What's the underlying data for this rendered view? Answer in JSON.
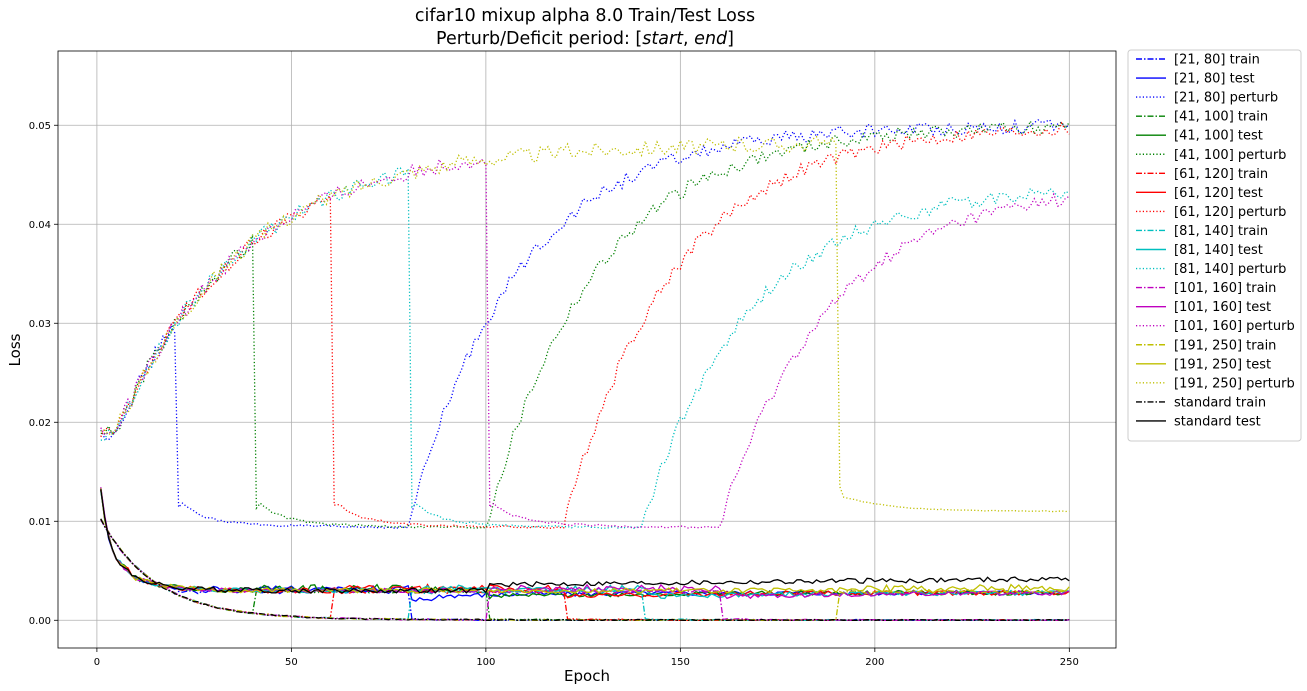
{
  "chart_data": {
    "type": "line",
    "title_line1": "cifar10 mixup alpha 8.0 Train/Test Loss",
    "title_line2_prefix": "Perturb/Deficit period: [",
    "title_line2_start": "start",
    "title_line2_sep": ", ",
    "title_line2_end": "end",
    "title_line2_suffix": "]",
    "xlabel": "Epoch",
    "ylabel": "Loss",
    "xlim": [
      -10,
      262
    ],
    "ylim": [
      -0.0028,
      0.0575
    ],
    "xticks": [
      0,
      50,
      100,
      150,
      200,
      250
    ],
    "yticks": [
      0.0,
      0.01,
      0.02,
      0.03,
      0.04,
      0.05
    ],
    "ytick_labels": [
      "0.00",
      "0.01",
      "0.02",
      "0.03",
      "0.04",
      "0.05"
    ],
    "grid": true,
    "legend_position": "outside-right-top",
    "series": [
      {
        "name": "[21, 80] train",
        "color": "#0000ff",
        "style": "dashdot",
        "period": [
          21,
          80
        ],
        "kind": "train"
      },
      {
        "name": "[21, 80] test",
        "color": "#0000ff",
        "style": "solid",
        "period": [
          21,
          80
        ],
        "kind": "test"
      },
      {
        "name": "[21, 80] perturb",
        "color": "#0000ff",
        "style": "dotted",
        "period": [
          21,
          80
        ],
        "kind": "perturb"
      },
      {
        "name": "[41, 100] train",
        "color": "#008000",
        "style": "dashdot",
        "period": [
          41,
          100
        ],
        "kind": "train"
      },
      {
        "name": "[41, 100] test",
        "color": "#008000",
        "style": "solid",
        "period": [
          41,
          100
        ],
        "kind": "test"
      },
      {
        "name": "[41, 100] perturb",
        "color": "#008000",
        "style": "dotted",
        "period": [
          41,
          100
        ],
        "kind": "perturb"
      },
      {
        "name": "[61, 120] train",
        "color": "#ff0000",
        "style": "dashdot",
        "period": [
          61,
          120
        ],
        "kind": "train"
      },
      {
        "name": "[61, 120] test",
        "color": "#ff0000",
        "style": "solid",
        "period": [
          61,
          120
        ],
        "kind": "test"
      },
      {
        "name": "[61, 120] perturb",
        "color": "#ff0000",
        "style": "dotted",
        "period": [
          61,
          120
        ],
        "kind": "perturb"
      },
      {
        "name": "[81, 140] train",
        "color": "#00bfbf",
        "style": "dashdot",
        "period": [
          81,
          140
        ],
        "kind": "train"
      },
      {
        "name": "[81, 140] test",
        "color": "#00bfbf",
        "style": "solid",
        "period": [
          81,
          140
        ],
        "kind": "test"
      },
      {
        "name": "[81, 140] perturb",
        "color": "#00bfbf",
        "style": "dotted",
        "period": [
          81,
          140
        ],
        "kind": "perturb"
      },
      {
        "name": "[101, 160] train",
        "color": "#bf00bf",
        "style": "dashdot",
        "period": [
          101,
          160
        ],
        "kind": "train"
      },
      {
        "name": "[101, 160] test",
        "color": "#bf00bf",
        "style": "solid",
        "period": [
          101,
          160
        ],
        "kind": "test"
      },
      {
        "name": "[101, 160] perturb",
        "color": "#bf00bf",
        "style": "dotted",
        "period": [
          101,
          160
        ],
        "kind": "perturb"
      },
      {
        "name": "[191, 250] train",
        "color": "#bfbf00",
        "style": "dashdot",
        "period": [
          191,
          250
        ],
        "kind": "train"
      },
      {
        "name": "[191, 250] test",
        "color": "#bfbf00",
        "style": "solid",
        "period": [
          191,
          250
        ],
        "kind": "test"
      },
      {
        "name": "[191, 250] perturb",
        "color": "#bfbf00",
        "style": "dotted",
        "period": [
          191,
          250
        ],
        "kind": "perturb"
      },
      {
        "name": "standard train",
        "color": "#000000",
        "style": "dashdot",
        "period": null,
        "kind": "train"
      },
      {
        "name": "standard test",
        "color": "#000000",
        "style": "solid",
        "period": null,
        "kind": "test"
      }
    ]
  }
}
